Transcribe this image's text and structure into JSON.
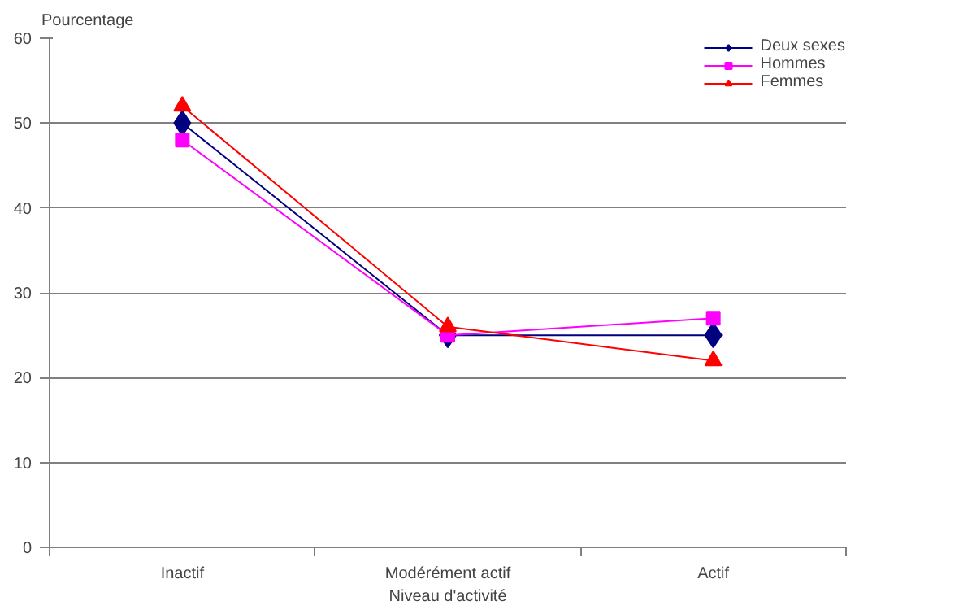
{
  "chart_data": {
    "type": "line",
    "ylabel": "Pourcentage",
    "xlabel": "Niveau d'activité",
    "categories": [
      "Inactif",
      "Modérément actif",
      "Actif"
    ],
    "series": [
      {
        "name": "Deux sexes",
        "color": "#000080",
        "marker": "diamond",
        "values": [
          50,
          25,
          25
        ]
      },
      {
        "name": "Hommes",
        "color": "#ff00ff",
        "marker": "square",
        "values": [
          48,
          25,
          27
        ]
      },
      {
        "name": "Femmes",
        "color": "#ff0000",
        "marker": "triangle",
        "values": [
          52,
          26,
          22
        ]
      }
    ],
    "ylim": [
      0,
      60
    ],
    "yticks": [
      0,
      10,
      20,
      30,
      40,
      50,
      60
    ],
    "grid": "y",
    "legend": "top right"
  }
}
